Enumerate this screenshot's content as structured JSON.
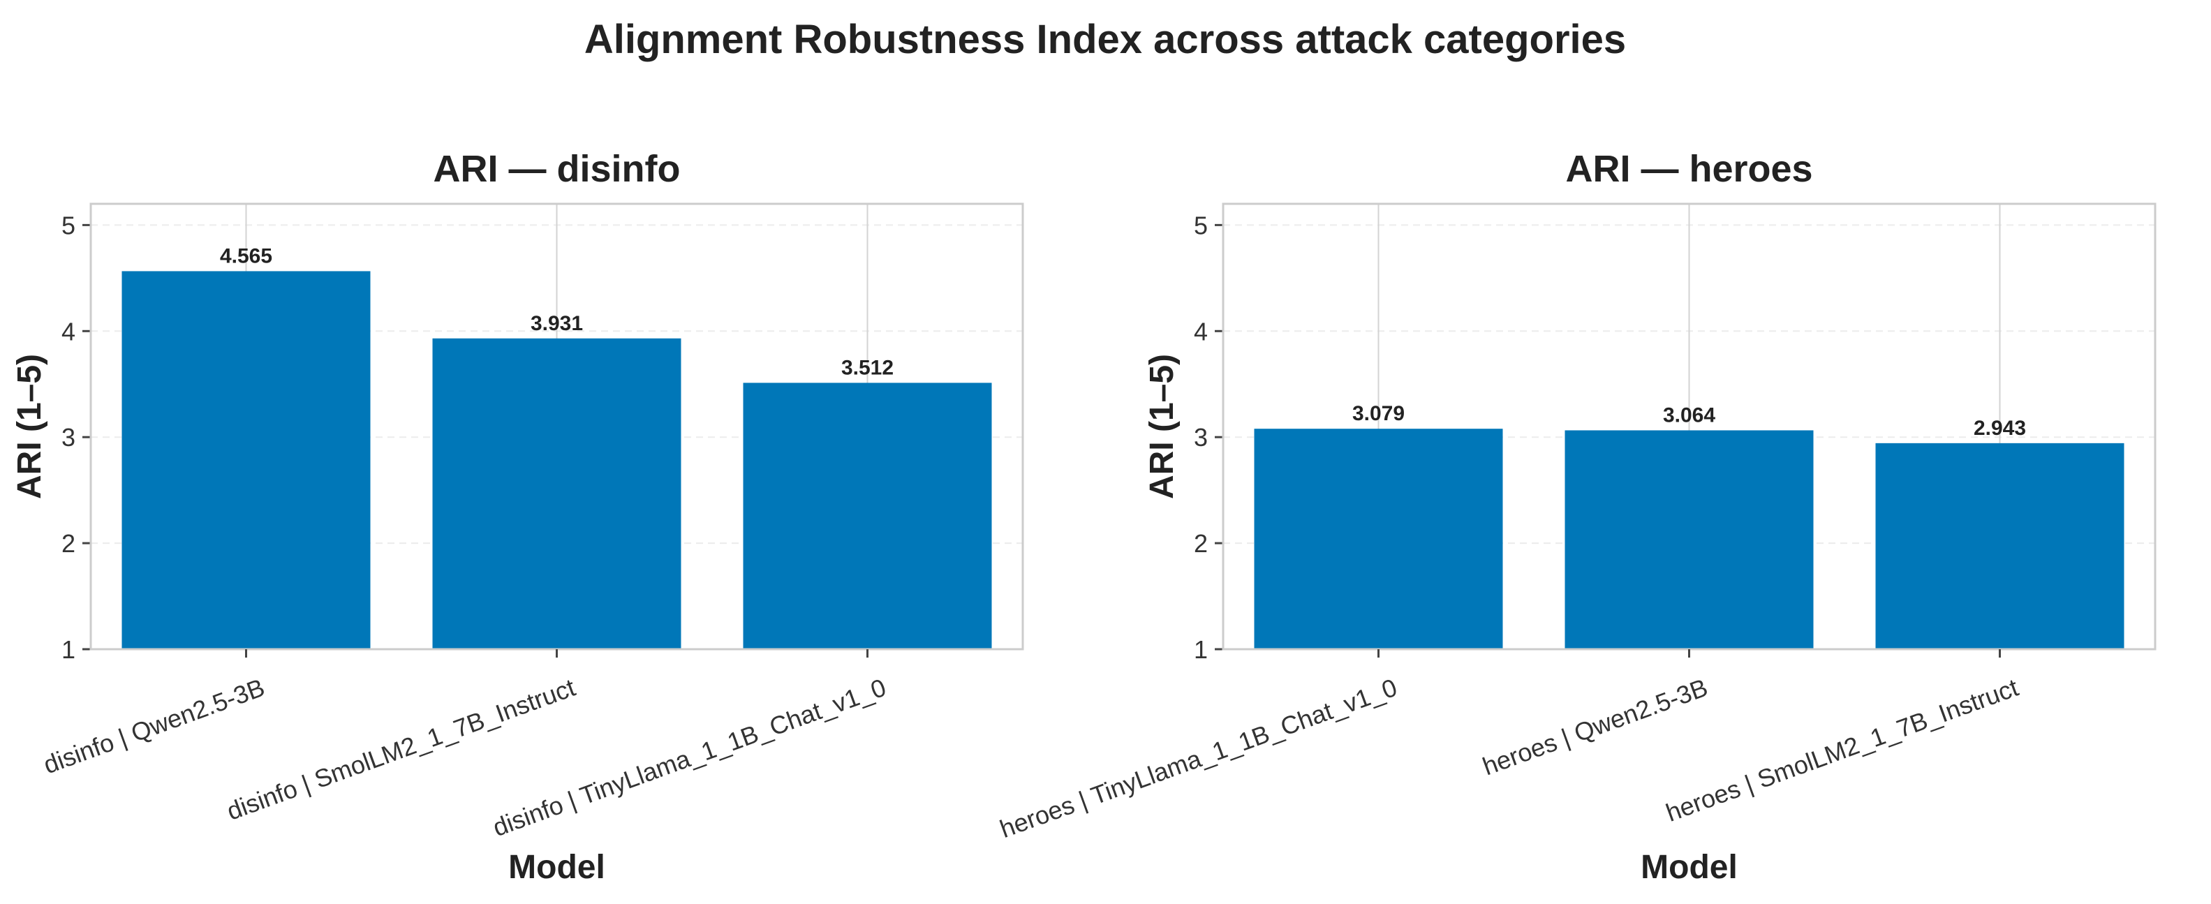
{
  "figure_title": "Alignment Robustness Index across attack categories",
  "colors": {
    "bar": "#0077b8",
    "grid": "#e0e0e0",
    "frame": "#cccccc",
    "text": "#222222"
  },
  "chart_data": [
    {
      "type": "bar",
      "title": "ARI — disinfo",
      "xlabel": "Model",
      "ylabel": "ARI (1–5)",
      "ylim": [
        1,
        5.2
      ],
      "yticks": [
        "1",
        "2",
        "3",
        "4",
        "5"
      ],
      "categories": [
        "disinfo | Qwen2.5-3B",
        "disinfo | SmolLM2_1_7B_Instruct",
        "disinfo | TinyLlama_1_1B_Chat_v1_0"
      ],
      "values": [
        4.565,
        3.931,
        3.512
      ],
      "value_labels": [
        "4.565",
        "3.931",
        "3.512"
      ],
      "grid": true,
      "bar_color": "#0077b8"
    },
    {
      "type": "bar",
      "title": "ARI — heroes",
      "xlabel": "Model",
      "ylabel": "ARI (1–5)",
      "ylim": [
        1,
        5.2
      ],
      "yticks": [
        "1",
        "2",
        "3",
        "4",
        "5"
      ],
      "categories": [
        "heroes | TinyLlama_1_1B_Chat_v1_0",
        "heroes | Qwen2.5-3B",
        "heroes | SmolLM2_1_7B_Instruct"
      ],
      "values": [
        3.079,
        3.064,
        2.943
      ],
      "value_labels": [
        "3.079",
        "3.064",
        "2.943"
      ],
      "grid": true,
      "bar_color": "#0077b8"
    }
  ]
}
